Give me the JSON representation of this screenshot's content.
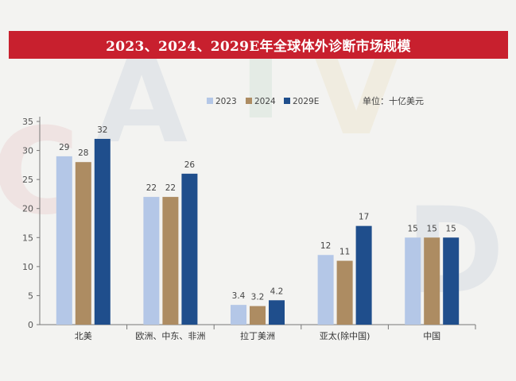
{
  "colors": {
    "banner": "#c8202e",
    "background": "#f3f3f1",
    "series": [
      "#b4c7e7",
      "#ad8c62",
      "#1f4e8c"
    ]
  },
  "watermark_text": "CAIVD",
  "chart_data": {
    "type": "bar",
    "title": "2023、2024、2029E年全球体外诊断市场规模",
    "unit": "单位：十亿美元",
    "categories": [
      "北美",
      "欧洲、中东、非洲",
      "拉丁美洲",
      "亚太(除中国)",
      "中国"
    ],
    "series": [
      {
        "name": "2023",
        "values": [
          29,
          22,
          3.4,
          12,
          15
        ]
      },
      {
        "name": "2024",
        "values": [
          28,
          22,
          3.2,
          11,
          15
        ]
      },
      {
        "name": "2029E",
        "values": [
          32,
          26,
          4.2,
          17,
          15
        ]
      }
    ],
    "y_ticks": [
      0,
      5,
      10,
      15,
      20,
      25,
      30,
      35
    ],
    "ylim": [
      0,
      35
    ],
    "grid": false,
    "legend_position": "top-center"
  }
}
